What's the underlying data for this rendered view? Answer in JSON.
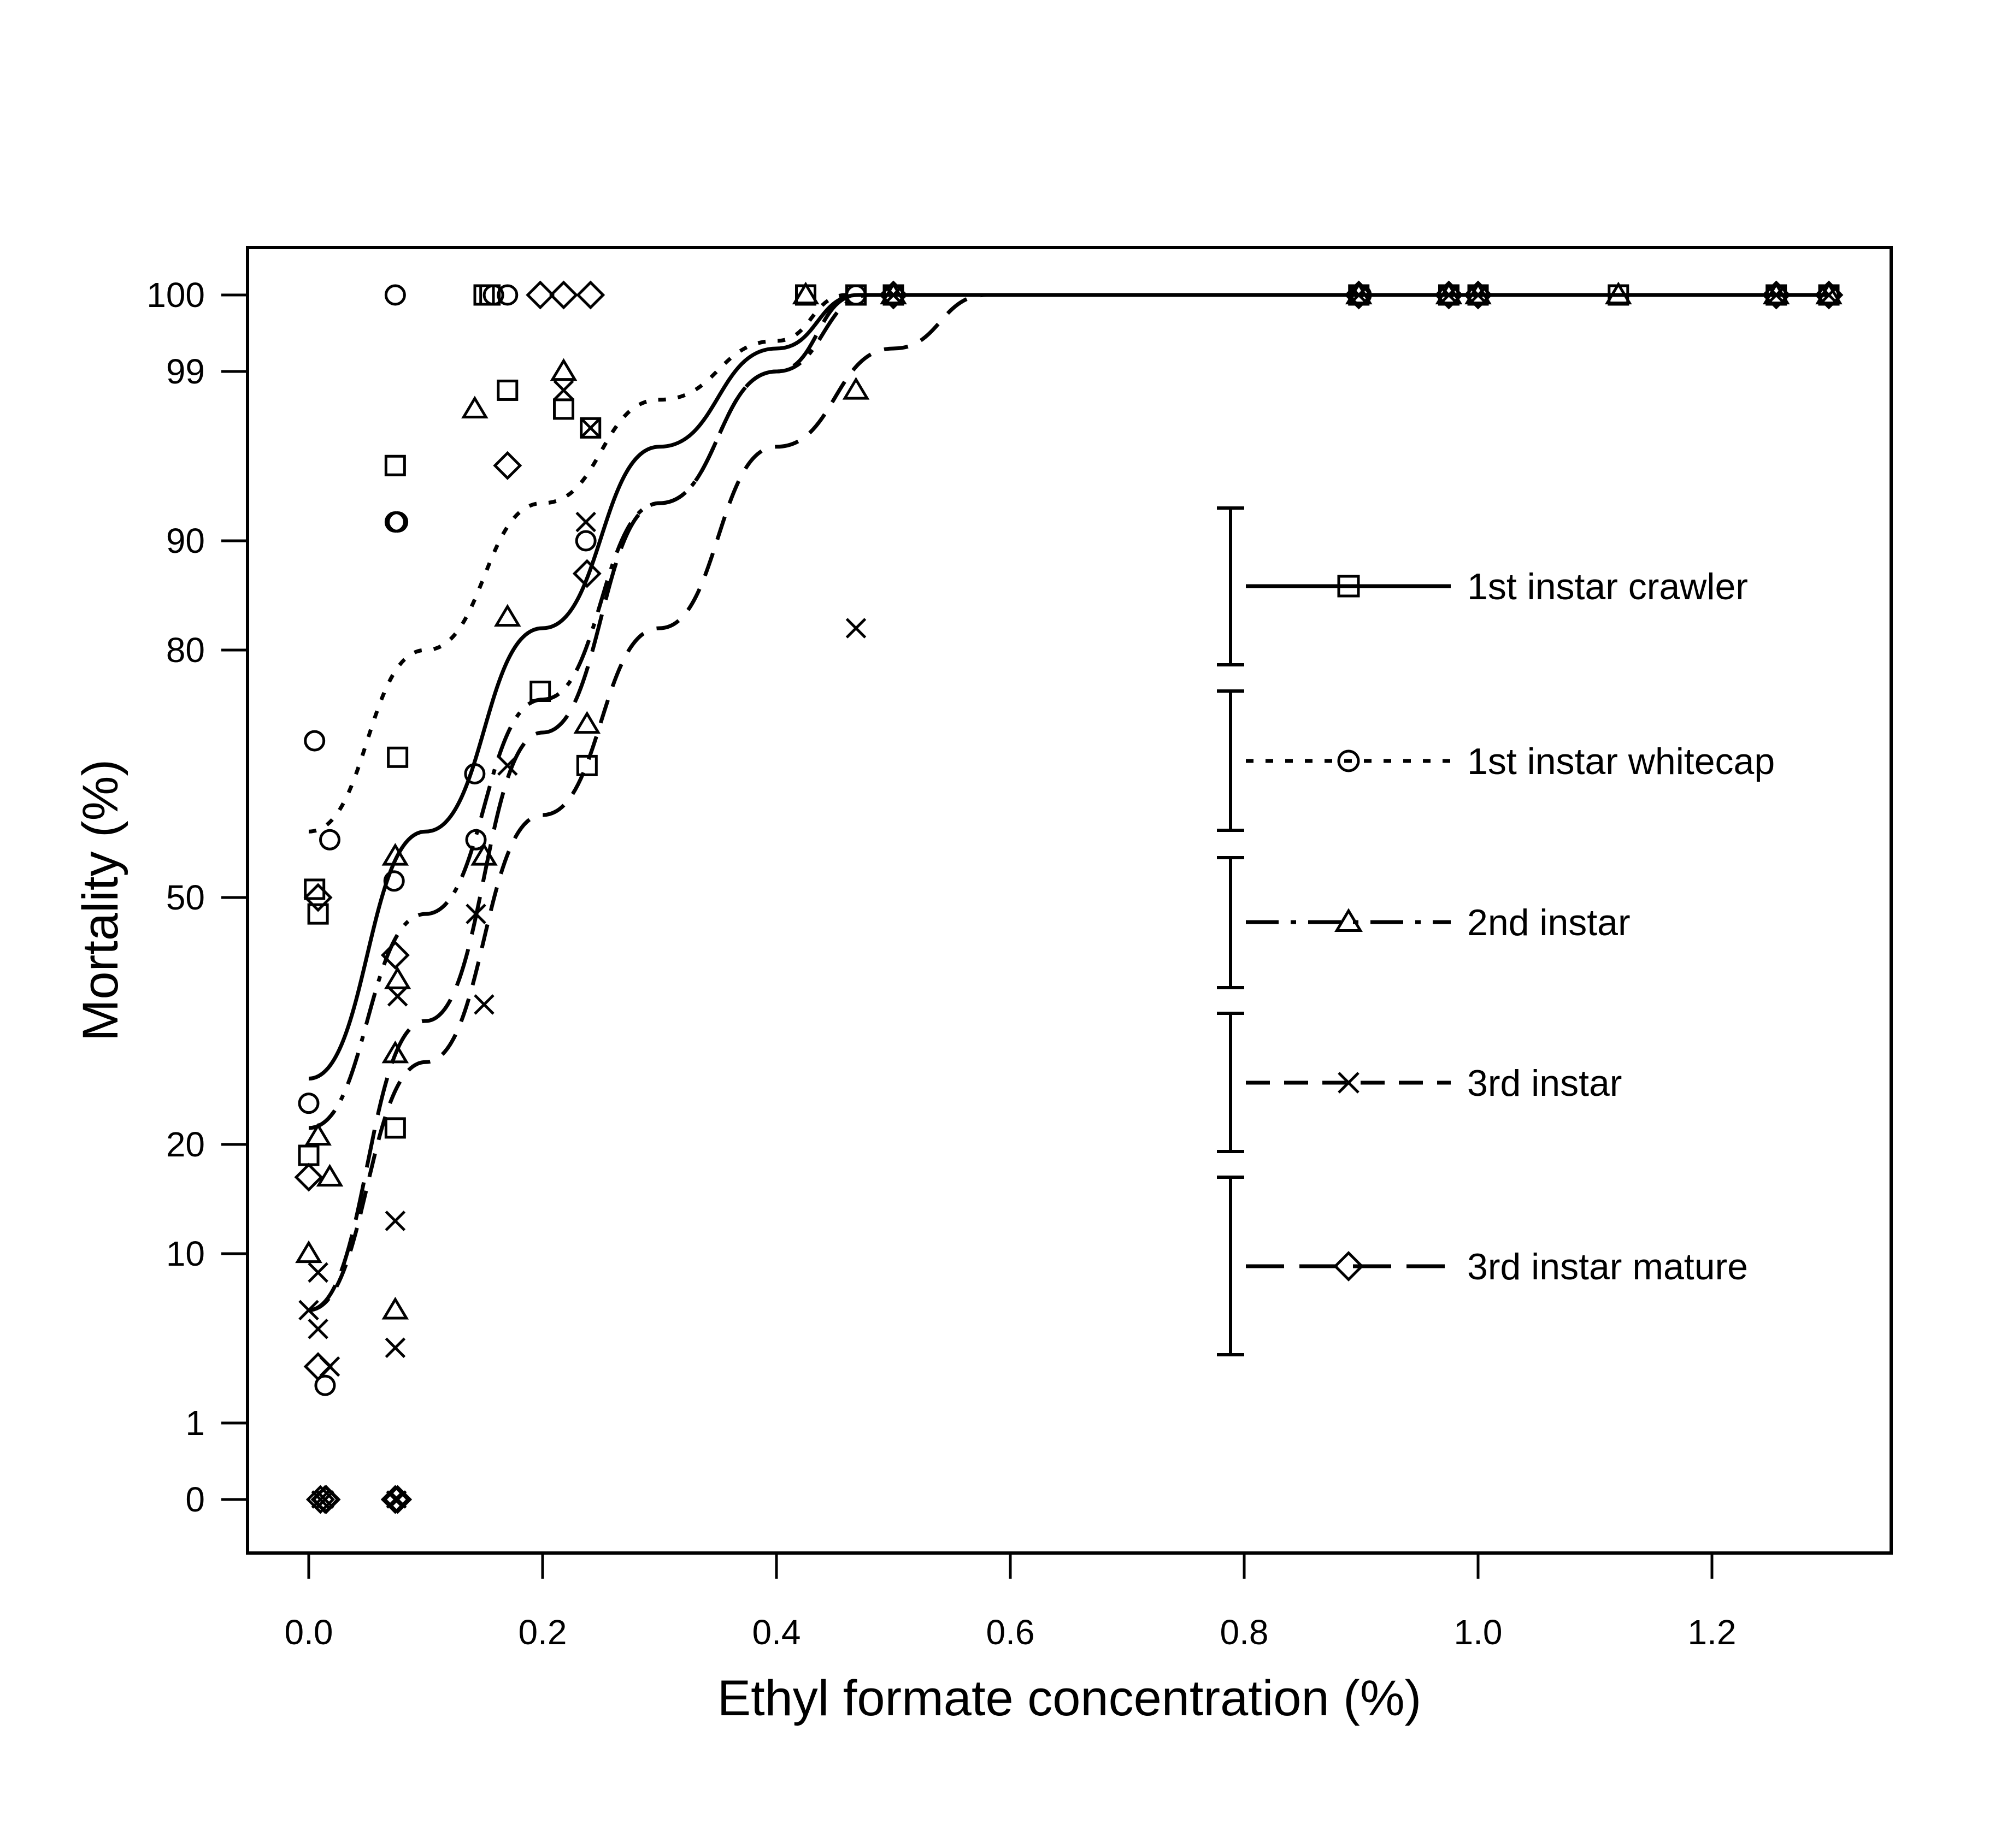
{
  "chart_data": {
    "type": "scatter",
    "title": "",
    "xlabel": "Ethyl formate concentration (%)",
    "ylabel": "Mortality (%)",
    "xlim": [
      -0.05,
      1.35
    ],
    "ylim": [
      -0.2,
      100
    ],
    "x_ticks": [
      0.0,
      0.2,
      0.4,
      0.6,
      0.8,
      1.0,
      1.2
    ],
    "x_tick_labels": [
      "0.0",
      "0.2",
      "0.4",
      "0.6",
      "0.8",
      "1.0",
      "1.2"
    ],
    "y_ticks": [
      0,
      1,
      10,
      20,
      50,
      80,
      90,
      99,
      100
    ],
    "y_tick_labels": [
      "0",
      "1",
      "10",
      "20",
      "50",
      "80",
      "90",
      "99",
      "100"
    ],
    "y_scale": "probit-like (nonlinear)",
    "grid": false,
    "legend_position": "right",
    "series": [
      {
        "name": "1st instar crawler",
        "marker": "square",
        "line": "solid",
        "points": [
          [
            0.0,
            19
          ],
          [
            0.005,
            51
          ],
          [
            0.008,
            48
          ],
          [
            0.074,
            22
          ],
          [
            0.076,
            67
          ],
          [
            0.074,
            94
          ],
          [
            0.15,
            100
          ],
          [
            0.155,
            100
          ],
          [
            0.17,
            98
          ],
          [
            0.198,
            75
          ],
          [
            0.218,
            97
          ],
          [
            0.238,
            66
          ],
          [
            0.241,
            96
          ],
          [
            0.425,
            100
          ],
          [
            0.468,
            100
          ],
          [
            0.5,
            100
          ],
          [
            0.898,
            100
          ],
          [
            0.975,
            100
          ],
          [
            1.0,
            100
          ],
          [
            1.12,
            100
          ],
          [
            1.255,
            100
          ],
          [
            1.3,
            100
          ]
        ],
        "fit": [
          [
            0.0,
            28
          ],
          [
            0.1,
            58
          ],
          [
            0.2,
            82
          ],
          [
            0.3,
            95
          ],
          [
            0.4,
            99.3
          ],
          [
            0.47,
            100
          ],
          [
            1.3,
            100
          ]
        ]
      },
      {
        "name": "1st instar whitecap",
        "marker": "circle",
        "line": "dotted",
        "points": [
          [
            0.0,
            25
          ],
          [
            0.005,
            69
          ],
          [
            0.014,
            3
          ],
          [
            0.018,
            57
          ],
          [
            0.074,
            100
          ],
          [
            0.073,
            52
          ],
          [
            0.074,
            91
          ],
          [
            0.076,
            91
          ],
          [
            0.142,
            65
          ],
          [
            0.143,
            57
          ],
          [
            0.158,
            100
          ],
          [
            0.17,
            100
          ],
          [
            0.237,
            90
          ],
          [
            0.468,
            100
          ],
          [
            0.5,
            100
          ],
          [
            0.9,
            100
          ],
          [
            0.975,
            100
          ],
          [
            1.0,
            100
          ],
          [
            1.255,
            100
          ],
          [
            1.3,
            100
          ]
        ],
        "fit": [
          [
            0.0,
            58
          ],
          [
            0.1,
            80
          ],
          [
            0.2,
            92
          ],
          [
            0.3,
            97.5
          ],
          [
            0.4,
            99.4
          ],
          [
            0.46,
            100
          ],
          [
            1.3,
            100
          ]
        ]
      },
      {
        "name": "2nd instar",
        "marker": "triangle",
        "line": "dotdash",
        "points": [
          [
            0.0,
            10
          ],
          [
            0.008,
            21
          ],
          [
            0.018,
            17
          ],
          [
            0.074,
            55
          ],
          [
            0.076,
            40
          ],
          [
            0.074,
            31
          ],
          [
            0.074,
            7
          ],
          [
            0.142,
            97
          ],
          [
            0.15,
            55
          ],
          [
            0.17,
            83
          ],
          [
            0.218,
            99
          ],
          [
            0.238,
            71
          ],
          [
            0.425,
            100
          ],
          [
            0.468,
            98
          ],
          [
            0.5,
            100
          ],
          [
            0.898,
            100
          ],
          [
            0.975,
            100
          ],
          [
            1.0,
            100
          ],
          [
            1.12,
            100
          ],
          [
            1.255,
            100
          ],
          [
            1.3,
            100
          ]
        ],
        "fit": [
          [
            0.0,
            22
          ],
          [
            0.1,
            48
          ],
          [
            0.2,
            74
          ],
          [
            0.3,
            92
          ],
          [
            0.4,
            99
          ],
          [
            0.48,
            100
          ],
          [
            1.3,
            100
          ]
        ]
      },
      {
        "name": "3rd instar",
        "marker": "x",
        "line": "dashed",
        "points": [
          [
            0.0,
            7
          ],
          [
            0.008,
            9
          ],
          [
            0.008,
            6
          ],
          [
            0.018,
            4
          ],
          [
            0.074,
            13
          ],
          [
            0.076,
            38
          ],
          [
            0.074,
            5
          ],
          [
            0.143,
            48
          ],
          [
            0.15,
            37
          ],
          [
            0.17,
            66
          ],
          [
            0.218,
            98
          ],
          [
            0.237,
            91
          ],
          [
            0.241,
            96
          ],
          [
            0.468,
            82
          ],
          [
            0.5,
            100
          ],
          [
            0.898,
            100
          ],
          [
            0.975,
            100
          ],
          [
            1.0,
            100
          ],
          [
            1.255,
            100
          ],
          [
            1.3,
            100
          ]
        ],
        "fit": [
          [
            0.0,
            7
          ],
          [
            0.1,
            30
          ],
          [
            0.2,
            60
          ],
          [
            0.3,
            82
          ],
          [
            0.4,
            95
          ],
          [
            0.5,
            99.3
          ],
          [
            0.58,
            100
          ],
          [
            1.3,
            100
          ]
        ]
      },
      {
        "name": "3rd instar mature",
        "marker": "diamond",
        "line": "longdash",
        "points": [
          [
            0.0,
            17
          ],
          [
            0.008,
            50
          ],
          [
            0.008,
            4
          ],
          [
            0.015,
            0
          ],
          [
            0.074,
            0
          ],
          [
            0.074,
            43
          ],
          [
            0.17,
            94
          ],
          [
            0.198,
            100
          ],
          [
            0.218,
            100
          ],
          [
            0.238,
            87
          ],
          [
            0.241,
            100
          ],
          [
            0.5,
            100
          ],
          [
            0.898,
            100
          ],
          [
            0.975,
            100
          ],
          [
            1.0,
            100
          ],
          [
            1.255,
            100
          ],
          [
            1.3,
            100
          ]
        ],
        "fit": [
          [
            0.0,
            7
          ],
          [
            0.1,
            35
          ],
          [
            0.2,
            70
          ],
          [
            0.3,
            92
          ],
          [
            0.4,
            99
          ],
          [
            0.47,
            100
          ],
          [
            1.3,
            100
          ]
        ]
      }
    ],
    "zero_points": [
      [
        0.01,
        0
      ],
      [
        0.014,
        0
      ],
      [
        0.074,
        0
      ],
      [
        0.076,
        0
      ]
    ]
  }
}
